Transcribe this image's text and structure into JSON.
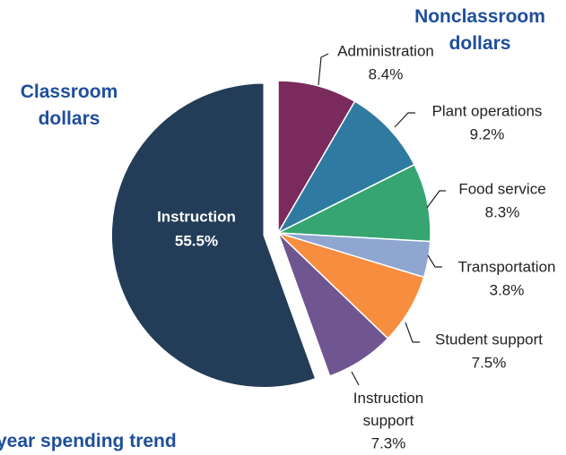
{
  "chart_data": {
    "type": "pie",
    "title": "Nonclassroom dollars",
    "subtitle": "Classroom dollars",
    "footer_text": "year spending trend",
    "categories": [
      "Instruction",
      "Administration",
      "Plant operations",
      "Food service",
      "Transportation",
      "Student support",
      "Instruction support"
    ],
    "values": [
      55.5,
      8.4,
      9.2,
      8.3,
      3.8,
      7.5,
      7.3
    ],
    "value_labels": [
      "55.5%",
      "8.4%",
      "9.2%",
      "8.3%",
      "3.8%",
      "7.5%",
      "7.3%"
    ],
    "colors": [
      "#233d58",
      "#7b2a5e",
      "#2f7aa0",
      "#36a571",
      "#8fa6d0",
      "#f68d3f",
      "#705690"
    ]
  }
}
